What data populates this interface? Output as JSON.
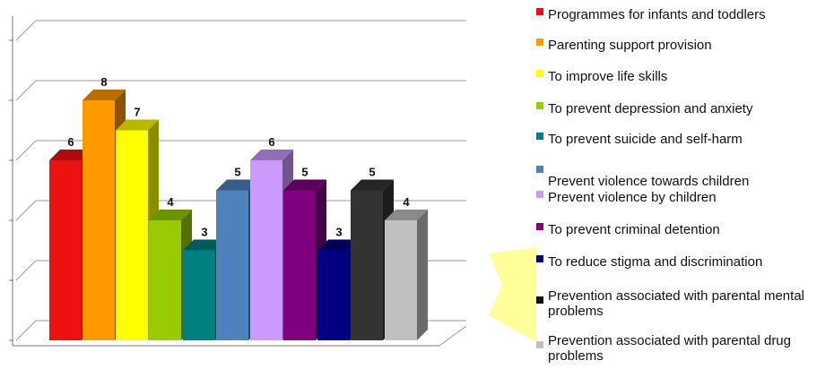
{
  "chart_data": {
    "type": "bar",
    "title": "",
    "xlabel": "",
    "ylabel": "",
    "ylim": [
      0,
      10
    ],
    "grid": true,
    "legend_position": "right",
    "categories": [
      ""
    ],
    "series": [
      {
        "name": "Programmes for infants and toddlers",
        "values": [
          6
        ],
        "color": "#ee1111"
      },
      {
        "name": "Parenting support provision",
        "values": [
          8
        ],
        "color": "#ff9900"
      },
      {
        "name": "To improve life skills",
        "values": [
          7
        ],
        "color": "#ffff00"
      },
      {
        "name": "To prevent depression and anxiety",
        "values": [
          4
        ],
        "color": "#99cc00"
      },
      {
        "name": "To prevent suicide and self-harm",
        "values": [
          3
        ],
        "color": "#008080"
      },
      {
        "name": "Prevent violence towards children",
        "values": [
          5
        ],
        "color": "#4f81bd"
      },
      {
        "name": "Prevent violence by children",
        "values": [
          6
        ],
        "color": "#cc99ff"
      },
      {
        "name": "To prevent criminal detention",
        "values": [
          5
        ],
        "color": "#800080"
      },
      {
        "name": "To reduce stigma and discrimination",
        "values": [
          3
        ],
        "color": "#000080"
      },
      {
        "name": "Prevention associated with parental mental problems",
        "values": [
          5
        ],
        "color": "#333333"
      },
      {
        "name": "Prevention associated with parental drug problems",
        "values": [
          4
        ],
        "color": "#c0c0c0"
      }
    ]
  },
  "legend": {
    "items": [
      {
        "label": "Programmes for infants and toddlers",
        "color": "#ee1111"
      },
      {
        "label": "Parenting support provision",
        "color": "#ff9900"
      },
      {
        "label": "To improve life skills",
        "color": "#ffff00"
      },
      {
        "label": "To prevent depression and anxiety",
        "color": "#99cc00"
      },
      {
        "label": "To prevent suicide and self-harm",
        "color": "#008080"
      },
      {
        "label": "Prevent violence towards children",
        "color": "#4f81bd"
      },
      {
        "label": "Prevent violence by children",
        "color": "#cc99ff"
      },
      {
        "label": "To prevent criminal detention",
        "color": "#800080"
      },
      {
        "label": "To reduce stigma and discrimination",
        "color": "#000080"
      },
      {
        "label": "Prevention associated with parental mental problems",
        "color": "#111111"
      },
      {
        "label": "Prevention associated with parental drug problems",
        "color": "#c0c0c0"
      }
    ]
  },
  "decoration": {
    "star_color": "#ffff99"
  }
}
